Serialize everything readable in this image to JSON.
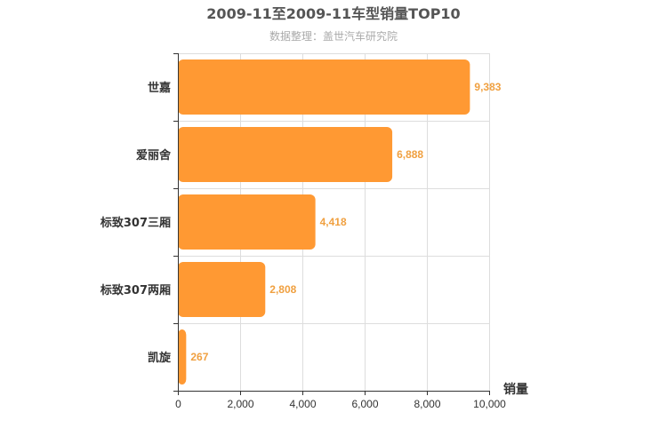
{
  "chart_data": {
    "type": "bar",
    "orientation": "horizontal",
    "title": "2009-11至2009-11车型销量TOP10",
    "subtitle": "数据整理：盖世汽车研究院",
    "categories": [
      "世嘉",
      "爱丽舍",
      "标致307三厢",
      "标致307两厢",
      "凯旋"
    ],
    "values": [
      9383,
      6888,
      4418,
      2808,
      267
    ],
    "value_labels": [
      "9,383",
      "6,888",
      "4,418",
      "2,808",
      "267"
    ],
    "xlabel": "销量",
    "ylabel": "",
    "xlim": [
      0,
      10000
    ],
    "ticks": [
      0,
      2000,
      4000,
      6000,
      8000,
      10000
    ],
    "tick_labels": [
      "0",
      "2,000",
      "4,000",
      "6,000",
      "8,000",
      "10,000"
    ],
    "grid": true,
    "bar_color": "#ff9933",
    "label_color": "#f0a040"
  }
}
